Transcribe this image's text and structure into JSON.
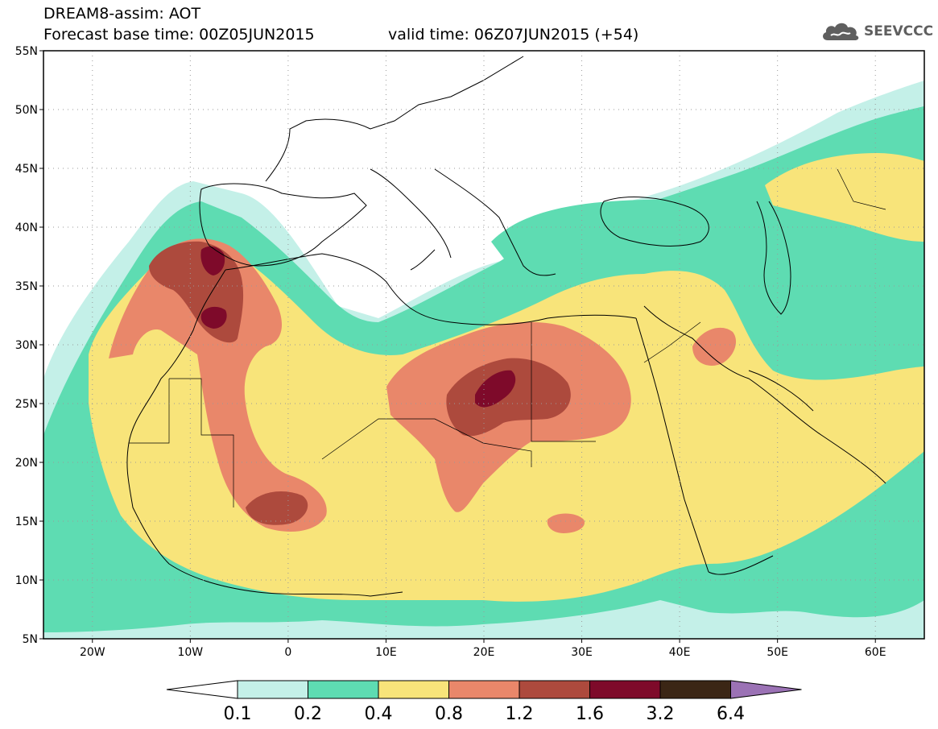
{
  "title": {
    "line1": "DREAM8-assim: AOT",
    "line2": "Forecast base time: 00Z05JUN2015",
    "valid_time": "valid time: 06Z07JUN2015 (+54)"
  },
  "logo": {
    "text": "SEEVCCC",
    "icon": "cloud-icon"
  },
  "map": {
    "lon_range": [
      -25,
      65
    ],
    "lat_range": [
      5,
      55
    ],
    "lon_ticks": [
      {
        "value": -20,
        "label": "20W"
      },
      {
        "value": -10,
        "label": "10W"
      },
      {
        "value": 0,
        "label": "0"
      },
      {
        "value": 10,
        "label": "10E"
      },
      {
        "value": 20,
        "label": "20E"
      },
      {
        "value": 30,
        "label": "30E"
      },
      {
        "value": 40,
        "label": "40E"
      },
      {
        "value": 50,
        "label": "50E"
      },
      {
        "value": 60,
        "label": "60E"
      }
    ],
    "lat_ticks": [
      {
        "value": 55,
        "label": "55N"
      },
      {
        "value": 50,
        "label": "50N"
      },
      {
        "value": 45,
        "label": "45N"
      },
      {
        "value": 40,
        "label": "40N"
      },
      {
        "value": 35,
        "label": "35N"
      },
      {
        "value": 30,
        "label": "30N"
      },
      {
        "value": 25,
        "label": "25N"
      },
      {
        "value": 20,
        "label": "20N"
      },
      {
        "value": 15,
        "label": "15N"
      },
      {
        "value": 10,
        "label": "10N"
      },
      {
        "value": 5,
        "label": "5N"
      }
    ],
    "gridlines": "dotted"
  },
  "colorbar": {
    "levels": [
      "0.1",
      "0.2",
      "0.4",
      "0.8",
      "1.2",
      "1.6",
      "3.2",
      "6.4"
    ],
    "colors": [
      "#ffffff",
      "#c4f0e8",
      "#5edcb2",
      "#f8e47a",
      "#e9876a",
      "#ad4a3d",
      "#7e0a2a",
      "#3b2615",
      "#9b72b5"
    ]
  }
}
